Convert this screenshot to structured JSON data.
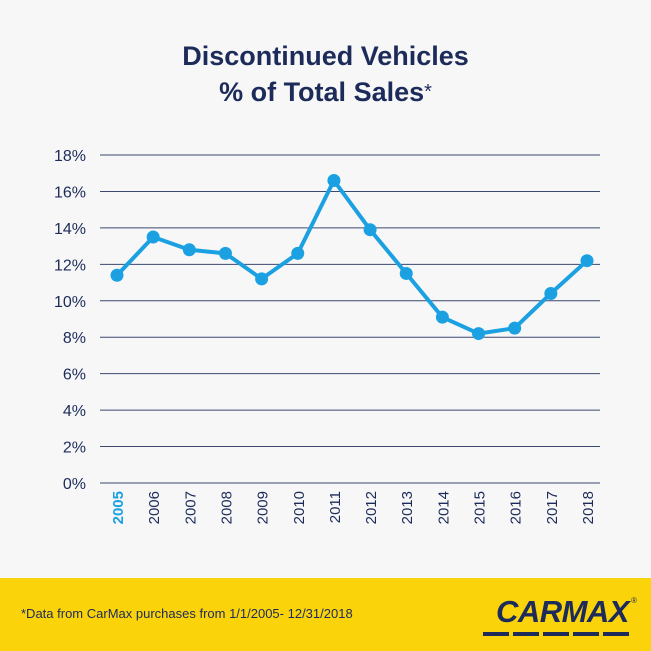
{
  "title": {
    "line1": "Discontinued Vehicles",
    "line2": "% of Total Sales",
    "asterisk": "*"
  },
  "footnote": "*Data from CarMax purchases from 1/1/2005- 12/31/2018",
  "logo": {
    "text": "CARMAX",
    "registered": "®"
  },
  "colors": {
    "line": "#1ba1e2",
    "title": "#1c2b5a",
    "highlight_tick": "#1ba1e2",
    "footer": "#fbd30b"
  },
  "chart_data": {
    "type": "line",
    "x": [
      "2005",
      "2006",
      "2007",
      "2008",
      "2009",
      "2010",
      "2011",
      "2012",
      "2013",
      "2014",
      "2015",
      "2016",
      "2017",
      "2018"
    ],
    "values": [
      11.4,
      13.5,
      12.8,
      12.6,
      11.2,
      12.6,
      16.6,
      13.9,
      11.5,
      9.1,
      8.2,
      8.5,
      10.4,
      12.2
    ],
    "ylim": [
      0,
      18
    ],
    "yticks": [
      "0%",
      "2%",
      "4%",
      "6%",
      "8%",
      "10%",
      "12%",
      "14%",
      "16%",
      "18%"
    ],
    "highlight_category": "2005",
    "grid": true,
    "legend": "none"
  }
}
